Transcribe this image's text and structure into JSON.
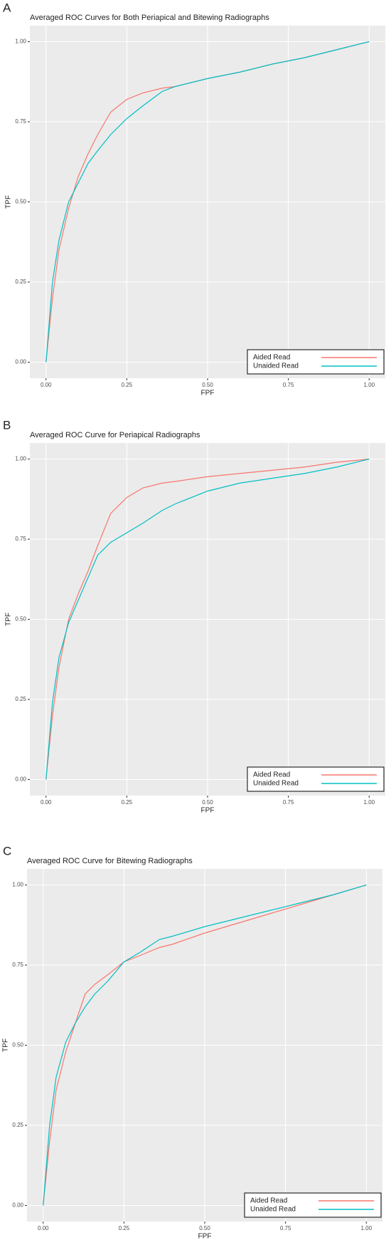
{
  "chart_data": [
    {
      "type": "line",
      "panel_label": "A",
      "title": "Averaged ROC Curves for Both Periapical and Bitewing Radiographs",
      "xlabel": "FPF",
      "ylabel": "TPF",
      "x": [
        0,
        0.02,
        0.04,
        0.07,
        0.1,
        0.13,
        0.16,
        0.2,
        0.25,
        0.3,
        0.36,
        0.4,
        0.5,
        0.6,
        0.7,
        0.8,
        0.9,
        1
      ],
      "series": [
        {
          "name": "Aided Read",
          "color": "#f8766d",
          "values": [
            0,
            0.2,
            0.35,
            0.48,
            0.58,
            0.65,
            0.71,
            0.78,
            0.82,
            0.84,
            0.855,
            0.86,
            0.885,
            0.905,
            0.93,
            0.95,
            0.975,
            1
          ]
        },
        {
          "name": "Unaided Read",
          "color": "#00bfc4",
          "values": [
            0,
            0.25,
            0.38,
            0.5,
            0.56,
            0.62,
            0.66,
            0.71,
            0.76,
            0.8,
            0.845,
            0.86,
            0.885,
            0.905,
            0.93,
            0.95,
            0.975,
            1
          ]
        }
      ],
      "xlim": [
        -0.05,
        1.05
      ],
      "ylim": [
        -0.05,
        1.05
      ],
      "xticks": [
        {
          "value": 0,
          "label": "0.00"
        },
        {
          "value": 0.25,
          "label": "0.25"
        },
        {
          "value": 0.5,
          "label": "0.50"
        },
        {
          "value": 0.75,
          "label": "0.75"
        },
        {
          "value": 1,
          "label": "1.00"
        }
      ],
      "yticks": [
        {
          "value": 0,
          "label": "0.00"
        },
        {
          "value": 0.25,
          "label": "0.25"
        },
        {
          "value": 0.5,
          "label": "0.50"
        },
        {
          "value": 0.75,
          "label": "0.75"
        },
        {
          "value": 1,
          "label": "1.00"
        }
      ],
      "grid": true,
      "legend": "bottom-right"
    },
    {
      "type": "line",
      "panel_label": "B",
      "title": "Averaged ROC Curve for Periapical Radiographs",
      "xlabel": "FPF",
      "ylabel": "TPF",
      "x": [
        0,
        0.02,
        0.04,
        0.07,
        0.1,
        0.13,
        0.16,
        0.2,
        0.25,
        0.3,
        0.36,
        0.4,
        0.5,
        0.6,
        0.7,
        0.8,
        0.9,
        1
      ],
      "series": [
        {
          "name": "Aided Read",
          "color": "#f8766d",
          "values": [
            0,
            0.2,
            0.35,
            0.5,
            0.58,
            0.65,
            0.73,
            0.83,
            0.88,
            0.91,
            0.925,
            0.93,
            0.945,
            0.955,
            0.965,
            0.975,
            0.99,
            1
          ]
        },
        {
          "name": "Unaided Read",
          "color": "#00bfc4",
          "values": [
            0,
            0.24,
            0.38,
            0.49,
            0.56,
            0.63,
            0.7,
            0.74,
            0.77,
            0.8,
            0.84,
            0.86,
            0.9,
            0.925,
            0.94,
            0.955,
            0.975,
            1
          ]
        }
      ],
      "xlim": [
        -0.05,
        1.05
      ],
      "ylim": [
        -0.05,
        1.05
      ],
      "xticks": [
        {
          "value": 0,
          "label": "0.00"
        },
        {
          "value": 0.25,
          "label": "0.25"
        },
        {
          "value": 0.5,
          "label": "0.50"
        },
        {
          "value": 0.75,
          "label": "0.75"
        },
        {
          "value": 1,
          "label": "1.00"
        }
      ],
      "yticks": [
        {
          "value": 0,
          "label": "0.00"
        },
        {
          "value": 0.25,
          "label": "0.25"
        },
        {
          "value": 0.5,
          "label": "0.50"
        },
        {
          "value": 0.75,
          "label": "0.75"
        },
        {
          "value": 1,
          "label": "1.00"
        }
      ],
      "grid": true,
      "legend": "bottom-right"
    },
    {
      "type": "line",
      "panel_label": "C",
      "title": "Averaged ROC Curve for Bitewing Radiographs",
      "xlabel": "FPF",
      "ylabel": "TPF",
      "x": [
        0,
        0.02,
        0.04,
        0.07,
        0.1,
        0.13,
        0.16,
        0.2,
        0.25,
        0.3,
        0.36,
        0.4,
        0.5,
        0.6,
        0.7,
        0.8,
        0.9,
        1
      ],
      "series": [
        {
          "name": "Aided Read",
          "color": "#f8766d",
          "values": [
            0,
            0.2,
            0.36,
            0.48,
            0.57,
            0.66,
            0.69,
            0.72,
            0.76,
            0.78,
            0.805,
            0.815,
            0.85,
            0.88,
            0.91,
            0.94,
            0.97,
            1
          ]
        },
        {
          "name": "Unaided Read",
          "color": "#00bfc4",
          "values": [
            0,
            0.25,
            0.4,
            0.51,
            0.57,
            0.62,
            0.66,
            0.7,
            0.76,
            0.79,
            0.83,
            0.84,
            0.87,
            0.895,
            0.92,
            0.945,
            0.97,
            1
          ]
        }
      ],
      "xlim": [
        -0.05,
        1.05
      ],
      "ylim": [
        -0.05,
        1.05
      ],
      "xticks": [
        {
          "value": 0,
          "label": "0.00"
        },
        {
          "value": 0.25,
          "label": "0.25"
        },
        {
          "value": 0.5,
          "label": "0.50"
        },
        {
          "value": 0.75,
          "label": "0.75"
        },
        {
          "value": 1,
          "label": "1.00"
        }
      ],
      "yticks": [
        {
          "value": 0,
          "label": "0.00"
        },
        {
          "value": 0.25,
          "label": "0.25"
        },
        {
          "value": 0.5,
          "label": "0.50"
        },
        {
          "value": 0.75,
          "label": "0.75"
        },
        {
          "value": 1,
          "label": "1.00"
        }
      ],
      "grid": true,
      "legend": "bottom-right"
    }
  ]
}
